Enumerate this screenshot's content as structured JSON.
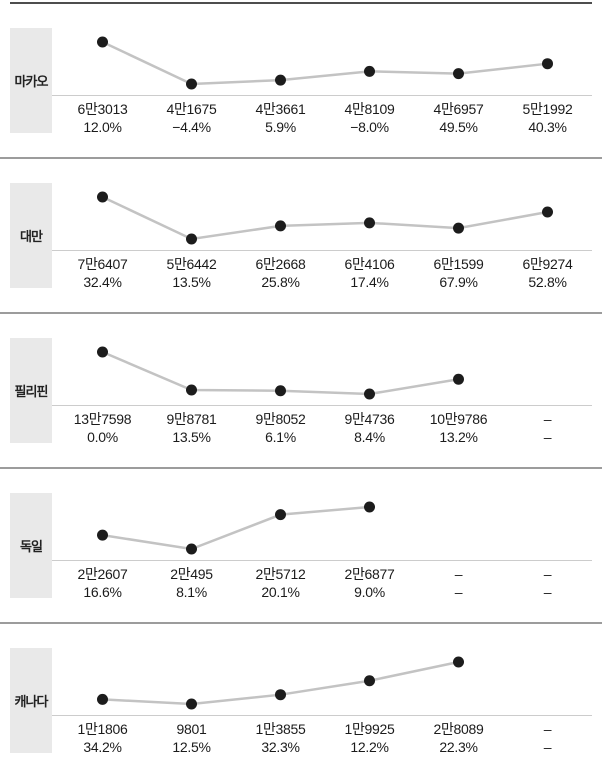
{
  "colors": {
    "top_rule": "#4d4d4d",
    "row_rule": "#9c9c9c",
    "label_bg": "#e9e9e9",
    "spark_line": "#c3c3c3",
    "dot": "#1c1c1c",
    "baseline": "#cccccc",
    "text": "#1b1b1b"
  },
  "table": {
    "rows": [
      {
        "label": "마카오",
        "points": [
          63013,
          41675,
          43661,
          48109,
          46957,
          51992
        ],
        "values": [
          "6만3013",
          "4만1675",
          "4만3661",
          "4만8109",
          "4만6957",
          "5만1992"
        ],
        "pcts": [
          "12.0%",
          "−4.4%",
          "5.9%",
          "−8.0%",
          "49.5%",
          "40.3%"
        ]
      },
      {
        "label": "대만",
        "points": [
          76407,
          56442,
          62668,
          64106,
          61599,
          69274
        ],
        "values": [
          "7만6407",
          "5만6442",
          "6만2668",
          "6만4106",
          "6만1599",
          "6만9274"
        ],
        "pcts": [
          "32.4%",
          "13.5%",
          "25.8%",
          "17.4%",
          "67.9%",
          "52.8%"
        ]
      },
      {
        "label": "필리핀",
        "points": [
          137598,
          98781,
          98052,
          94736,
          109786,
          null
        ],
        "values": [
          "13만7598",
          "9만8781",
          "9만8052",
          "9만4736",
          "10만9786",
          "–"
        ],
        "pcts": [
          "0.0%",
          "13.5%",
          "6.1%",
          "8.4%",
          "13.2%",
          "–"
        ]
      },
      {
        "label": "독일",
        "points": [
          22607,
          20495,
          25712,
          26877,
          null,
          null
        ],
        "values": [
          "2만2607",
          "2만495",
          "2만5712",
          "2만6877",
          "–",
          "–"
        ],
        "pcts": [
          "16.6%",
          "8.1%",
          "20.1%",
          "9.0%",
          "–",
          "–"
        ]
      },
      {
        "label": "캐나다",
        "points": [
          11806,
          9801,
          13855,
          19925,
          28089,
          null
        ],
        "values": [
          "1만1806",
          "9801",
          "1만3855",
          "1만9925",
          "2만8089",
          "–"
        ],
        "pcts": [
          "34.2%",
          "12.5%",
          "32.3%",
          "12.2%",
          "22.3%",
          "–"
        ]
      }
    ]
  },
  "chart_data": [
    {
      "type": "line",
      "name": "마카오",
      "x": [
        1,
        2,
        3,
        4,
        5,
        6
      ],
      "values": [
        63013,
        41675,
        43661,
        48109,
        46957,
        51992
      ],
      "growth_pct": [
        12.0,
        -4.4,
        5.9,
        -8.0,
        49.5,
        40.3
      ],
      "legend_position": "left-label",
      "grid": false
    },
    {
      "type": "line",
      "name": "대만",
      "x": [
        1,
        2,
        3,
        4,
        5,
        6
      ],
      "values": [
        76407,
        56442,
        62668,
        64106,
        61599,
        69274
      ],
      "growth_pct": [
        32.4,
        13.5,
        25.8,
        17.4,
        67.9,
        52.8
      ],
      "legend_position": "left-label",
      "grid": false
    },
    {
      "type": "line",
      "name": "필리핀",
      "x": [
        1,
        2,
        3,
        4,
        5,
        6
      ],
      "values": [
        137598,
        98781,
        98052,
        94736,
        109786,
        null
      ],
      "growth_pct": [
        0.0,
        13.5,
        6.1,
        8.4,
        13.2,
        null
      ],
      "legend_position": "left-label",
      "grid": false
    },
    {
      "type": "line",
      "name": "독일",
      "x": [
        1,
        2,
        3,
        4,
        5,
        6
      ],
      "values": [
        22607,
        20495,
        25712,
        26877,
        null,
        null
      ],
      "growth_pct": [
        16.6,
        8.1,
        20.1,
        9.0,
        null,
        null
      ],
      "legend_position": "left-label",
      "grid": false
    },
    {
      "type": "line",
      "name": "캐나다",
      "x": [
        1,
        2,
        3,
        4,
        5,
        6
      ],
      "values": [
        11806,
        9801,
        13855,
        19925,
        28089,
        null
      ],
      "growth_pct": [
        34.2,
        12.5,
        32.3,
        12.2,
        22.3,
        null
      ],
      "legend_position": "left-label",
      "grid": false
    }
  ]
}
